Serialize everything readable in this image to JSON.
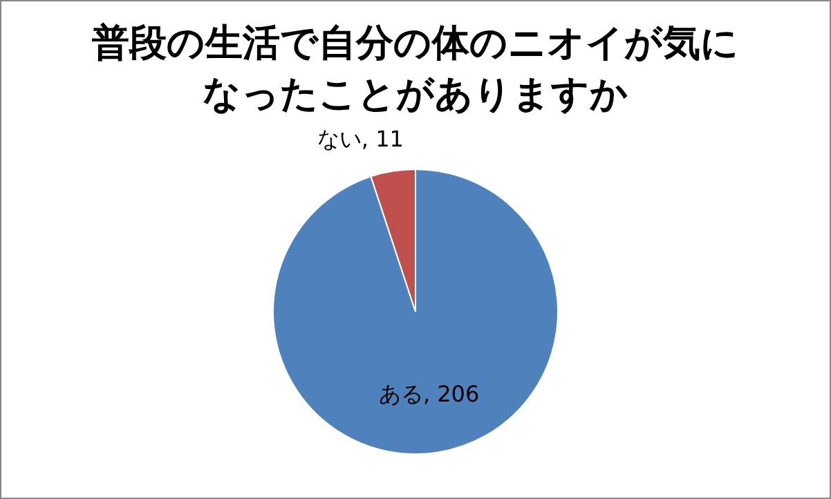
{
  "chart_data": {
    "type": "pie",
    "title": "普段の生活で自分の体のニオイが気になったことがありますか",
    "categories": [
      "ある",
      "ない"
    ],
    "values": [
      206,
      11
    ],
    "colors": [
      "#4f81bd",
      "#c0504d"
    ],
    "value_labels": [
      ", 206",
      ", 11"
    ],
    "legend": false
  }
}
